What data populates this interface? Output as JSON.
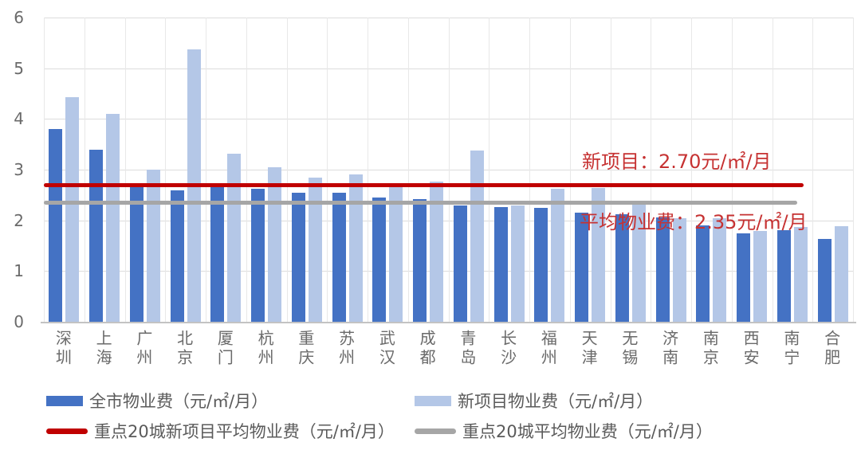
{
  "chart_data": {
    "type": "bar",
    "title": "",
    "xlabel": "",
    "ylabel": "",
    "ylim": [
      0,
      6
    ],
    "yticks": [
      0,
      1,
      2,
      3,
      4,
      5,
      6
    ],
    "grid": true,
    "legend_position": "bottom",
    "categories": [
      "深圳",
      "上海",
      "广州",
      "北京",
      "厦门",
      "杭州",
      "重庆",
      "苏州",
      "武汉",
      "成都",
      "青岛",
      "长沙",
      "福州",
      "天津",
      "无锡",
      "济南",
      "南京",
      "西安",
      "南宁",
      "合肥"
    ],
    "series": [
      {
        "name": "全市物业费（元/㎡/月）",
        "color": "#4472C4",
        "values": [
          3.8,
          3.4,
          2.65,
          2.6,
          2.65,
          2.62,
          2.55,
          2.54,
          2.45,
          2.42,
          2.3,
          2.26,
          2.24,
          2.15,
          2.12,
          2.06,
          1.9,
          1.75,
          1.8,
          1.64
        ]
      },
      {
        "name": "新项目物业费（元/㎡/月）",
        "color": "#B4C7E7",
        "values": [
          4.43,
          4.1,
          3.0,
          5.38,
          3.31,
          3.05,
          2.85,
          2.9,
          2.67,
          2.76,
          3.37,
          2.29,
          2.63,
          2.64,
          2.32,
          2.04,
          2.05,
          1.79,
          1.87,
          1.89
        ]
      }
    ],
    "ref_lines": [
      {
        "name": "重点20城新项目平均物业费（元/㎡/月）",
        "value": 2.7,
        "color": "#C00000"
      },
      {
        "name": "重点20城平均物业费（元/㎡/月）",
        "value": 2.35,
        "color": "#A6A6A6"
      }
    ],
    "annotations": [
      {
        "text": "新项目：2.70元/㎡/月",
        "color": "#C63232"
      },
      {
        "text": "平均物业费：2.35元/㎡/月",
        "color": "#C63232"
      }
    ]
  },
  "legend": {
    "items": [
      {
        "label": "全市物业费（元/㎡/月）",
        "marker": "bar",
        "color": "#4472C4"
      },
      {
        "label": "新项目物业费（元/㎡/月）",
        "marker": "bar",
        "color": "#B4C7E7"
      },
      {
        "label": "重点20城新项目平均物业费（元/㎡/月）",
        "marker": "line",
        "color": "#C00000"
      },
      {
        "label": "重点20城平均物业费（元/㎡/月）",
        "marker": "line",
        "color": "#A6A6A6"
      }
    ]
  },
  "colors": {
    "city_series": "#4472C4",
    "new_project_series": "#B4C7E7",
    "new_project_avg_line": "#C00000",
    "avg_line": "#A6A6A6",
    "annotation_text": "#C63232",
    "gridline": "#DCDCDC",
    "tick_text": "#6A6A6A"
  }
}
